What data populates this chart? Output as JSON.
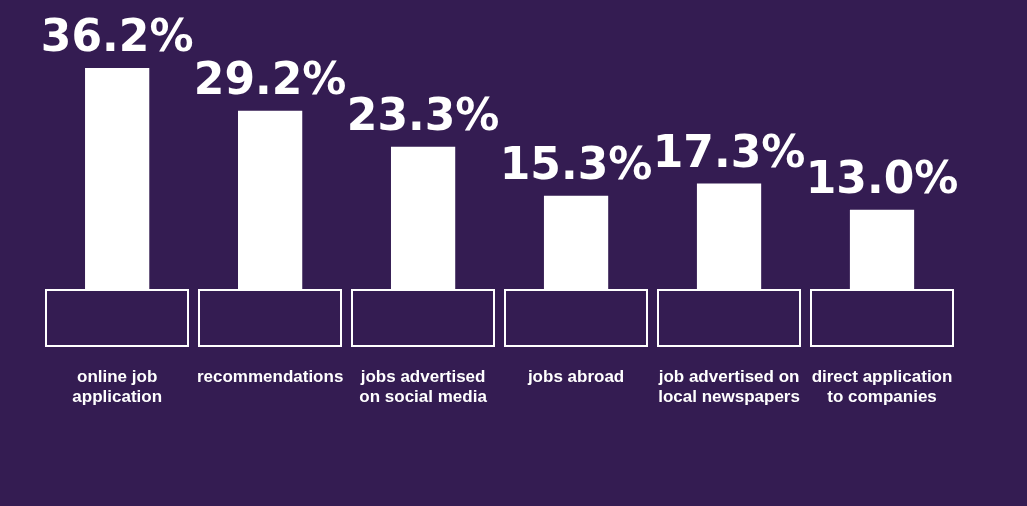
{
  "chart_data": {
    "type": "bar",
    "categories": [
      "online job application",
      "recommendations",
      "jobs advertised on social media",
      "jobs abroad",
      "job advertised on local newspapers",
      "direct application to companies"
    ],
    "values": [
      36.2,
      29.2,
      23.3,
      15.3,
      17.3,
      13.0
    ],
    "value_labels": [
      "36.2%",
      "29.2%",
      "23.3%",
      "15.3%",
      "17.3%",
      "13.0%"
    ],
    "color": "#ffffff",
    "grid": false,
    "legend": false
  }
}
